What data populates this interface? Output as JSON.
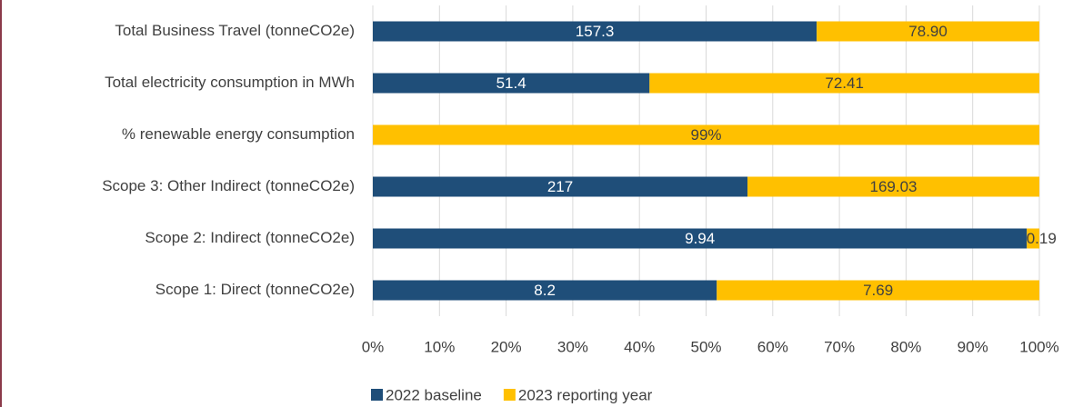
{
  "chart_data": {
    "type": "bar",
    "orientation": "horizontal",
    "stacked_percent": true,
    "categories": [
      "Total Business Travel (tonneCO2e)",
      "Total electricity consumption in MWh",
      "% renewable energy consumption",
      "Scope 3: Other Indirect (tonneCO2e)",
      "Scope 2: Indirect (tonneCO2e)",
      "Scope 1: Direct (tonneCO2e)"
    ],
    "series": [
      {
        "name": "2022 baseline",
        "color": "#1f4e79",
        "values": [
          157.3,
          51.4,
          0,
          217,
          9.94,
          8.2
        ],
        "value_labels": [
          "157.3",
          "51.4",
          "%",
          "217",
          "9.94",
          "8.2"
        ],
        "label_color": "#ffffff"
      },
      {
        "name": "2023 reporting year",
        "color": "#ffc000",
        "values": [
          78.9,
          72.41,
          99,
          169.03,
          0.19,
          7.69
        ],
        "value_labels": [
          "78.90",
          "72.41",
          "99%",
          "169.03",
          "0.19",
          "7.69"
        ],
        "label_color": "#404040"
      }
    ],
    "xlim": [
      0,
      100
    ],
    "xticks": [
      {
        "value": 0,
        "label": "0%"
      },
      {
        "value": 10,
        "label": "10%"
      },
      {
        "value": 20,
        "label": "20%"
      },
      {
        "value": 30,
        "label": "30%"
      },
      {
        "value": 40,
        "label": "40%"
      },
      {
        "value": 50,
        "label": "50%"
      },
      {
        "value": 60,
        "label": "60%"
      },
      {
        "value": 70,
        "label": "70%"
      },
      {
        "value": 80,
        "label": "80%"
      },
      {
        "value": 90,
        "label": "90%"
      },
      {
        "value": 100,
        "label": "100%"
      }
    ],
    "grid": true,
    "legend": "bottom"
  }
}
